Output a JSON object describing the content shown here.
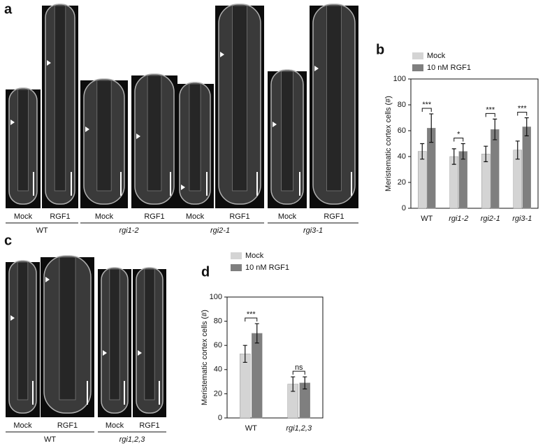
{
  "figure": {
    "panel_labels": [
      "a",
      "b",
      "c",
      "d"
    ],
    "image_panels": [
      {
        "groups": [
          {
            "name": "WT",
            "treatments": [
              "Mock",
              "RGF1"
            ]
          },
          {
            "name": "rgi1-2",
            "treatments": [
              "Mock",
              "RGF1"
            ]
          },
          {
            "name": "rgi2-1",
            "treatments": [
              "Mock",
              "RGF1"
            ]
          },
          {
            "name": "rgi3-1",
            "treatments": [
              "Mock",
              "RGF1"
            ]
          }
        ]
      },
      {
        "groups": [
          {
            "name": "WT",
            "treatments": [
              "Mock",
              "RGF1"
            ]
          },
          {
            "name": "rgi1,2,3",
            "treatments": [
              "Mock",
              "RGF1"
            ]
          }
        ]
      }
    ]
  },
  "chart_data": [
    {
      "type": "bar",
      "ylabel": "Meristematic cortex cells (#)",
      "categories": [
        "WT",
        "rgi1-2",
        "rgi2-1",
        "rgi3-1"
      ],
      "series": [
        {
          "name": "Mock",
          "color": "#d4d4d4",
          "values": [
            44,
            40,
            42,
            45
          ],
          "errors": [
            6,
            6,
            6,
            7
          ]
        },
        {
          "name": "10 nM RGF1",
          "color": "#7f7f7f",
          "values": [
            62,
            44,
            61,
            63
          ],
          "errors": [
            11,
            6,
            8,
            7
          ]
        }
      ],
      "significance": [
        "***",
        "*",
        "***",
        "***"
      ],
      "ylim": [
        0,
        100
      ],
      "yticks": [
        0,
        20,
        40,
        60,
        80,
        100
      ]
    },
    {
      "type": "bar",
      "ylabel": "Meristematic cortex cells (#)",
      "categories": [
        "WT",
        "rgi1,2,3"
      ],
      "series": [
        {
          "name": "Mock",
          "color": "#d4d4d4",
          "values": [
            53,
            28
          ],
          "errors": [
            7,
            6
          ]
        },
        {
          "name": "10 nM RGF1",
          "color": "#7f7f7f",
          "values": [
            70,
            29
          ],
          "errors": [
            8,
            5
          ]
        }
      ],
      "significance": [
        "***",
        "ns"
      ],
      "ylim": [
        0,
        100
      ],
      "yticks": [
        0,
        20,
        40,
        60,
        80,
        100
      ]
    }
  ]
}
